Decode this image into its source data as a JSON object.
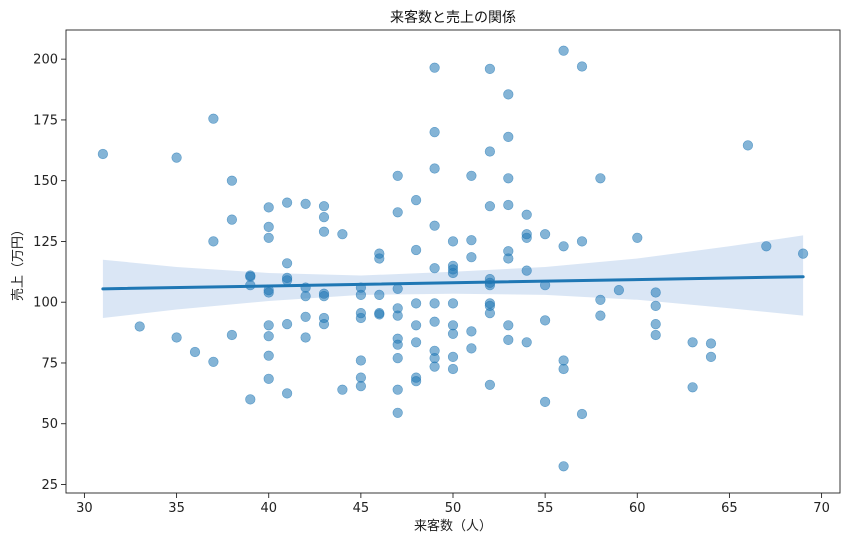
{
  "chart_data": {
    "type": "scatter",
    "title": "来客数と売上の関係",
    "xlabel": "来客数（人）",
    "ylabel": "売上（万円）",
    "xlim": [
      29,
      71
    ],
    "ylim": [
      21.5,
      212
    ],
    "xticks": [
      30,
      35,
      40,
      45,
      50,
      55,
      60,
      65,
      70
    ],
    "yticks": [
      25,
      50,
      75,
      100,
      125,
      150,
      175,
      200
    ],
    "grid": false,
    "legend": "none",
    "point_color": "#1f77b4",
    "line_color": "#1f77b4",
    "band_color": "#aec7e8",
    "points": [
      [
        31,
        161
      ],
      [
        33,
        90
      ],
      [
        35,
        159.5
      ],
      [
        35,
        85.5
      ],
      [
        36,
        79.5
      ],
      [
        37,
        175.5
      ],
      [
        37,
        125
      ],
      [
        37,
        75.5
      ],
      [
        38,
        150
      ],
      [
        38,
        134
      ],
      [
        38,
        86.5
      ],
      [
        39,
        111
      ],
      [
        39,
        110.5
      ],
      [
        39,
        107
      ],
      [
        39,
        60
      ],
      [
        40,
        139
      ],
      [
        40,
        131
      ],
      [
        40,
        126.5
      ],
      [
        40,
        105
      ],
      [
        40,
        104
      ],
      [
        40,
        90.5
      ],
      [
        40,
        86
      ],
      [
        40,
        78
      ],
      [
        40,
        68.5
      ],
      [
        41,
        141
      ],
      [
        41,
        116
      ],
      [
        41,
        110
      ],
      [
        41,
        109
      ],
      [
        41,
        91
      ],
      [
        41,
        62.5
      ],
      [
        42,
        140.5
      ],
      [
        42,
        106
      ],
      [
        42,
        102.5
      ],
      [
        42,
        94
      ],
      [
        42,
        85.5
      ],
      [
        43,
        139.5
      ],
      [
        43,
        135
      ],
      [
        43,
        129
      ],
      [
        43,
        103.5
      ],
      [
        43,
        102.5
      ],
      [
        43,
        93.5
      ],
      [
        43,
        91
      ],
      [
        44,
        128
      ],
      [
        44,
        64
      ],
      [
        45,
        106
      ],
      [
        45,
        103
      ],
      [
        45,
        95.5
      ],
      [
        45,
        93.5
      ],
      [
        45,
        76
      ],
      [
        45,
        69
      ],
      [
        45,
        65.5
      ],
      [
        46,
        120
      ],
      [
        46,
        118
      ],
      [
        46,
        103
      ],
      [
        46,
        95.5
      ],
      [
        46,
        95
      ],
      [
        47,
        152
      ],
      [
        47,
        137
      ],
      [
        47,
        105.5
      ],
      [
        47,
        97.5
      ],
      [
        47,
        94.5
      ],
      [
        47,
        85
      ],
      [
        47,
        82.5
      ],
      [
        47,
        77
      ],
      [
        47,
        64
      ],
      [
        47,
        54.5
      ],
      [
        48,
        142
      ],
      [
        48,
        121.5
      ],
      [
        48,
        99.5
      ],
      [
        48,
        90.5
      ],
      [
        48,
        83.5
      ],
      [
        48,
        69
      ],
      [
        48,
        67.5
      ],
      [
        49,
        196.5
      ],
      [
        49,
        170
      ],
      [
        49,
        155
      ],
      [
        49,
        131.5
      ],
      [
        49,
        114
      ],
      [
        49,
        99.5
      ],
      [
        49,
        92
      ],
      [
        49,
        80
      ],
      [
        49,
        77
      ],
      [
        49,
        73.5
      ],
      [
        50,
        125
      ],
      [
        50,
        115
      ],
      [
        50,
        113.5
      ],
      [
        50,
        112
      ],
      [
        50,
        99.5
      ],
      [
        50,
        90.5
      ],
      [
        50,
        87
      ],
      [
        50,
        77.5
      ],
      [
        50,
        72.5
      ],
      [
        51,
        152
      ],
      [
        51,
        125.5
      ],
      [
        51,
        118.5
      ],
      [
        51,
        88
      ],
      [
        51,
        81
      ],
      [
        52,
        196
      ],
      [
        52,
        162
      ],
      [
        52,
        139.5
      ],
      [
        52,
        109.5
      ],
      [
        52,
        108
      ],
      [
        52,
        107
      ],
      [
        52,
        99.5
      ],
      [
        52,
        98.5
      ],
      [
        52,
        95.5
      ],
      [
        52,
        66
      ],
      [
        53,
        185.5
      ],
      [
        53,
        168
      ],
      [
        53,
        151
      ],
      [
        53,
        140
      ],
      [
        53,
        121
      ],
      [
        53,
        118
      ],
      [
        53,
        90.5
      ],
      [
        53,
        84.5
      ],
      [
        54,
        136
      ],
      [
        54,
        128
      ],
      [
        54,
        126.5
      ],
      [
        54,
        113
      ],
      [
        54,
        83.5
      ],
      [
        55,
        128
      ],
      [
        55,
        107
      ],
      [
        55,
        92.5
      ],
      [
        55,
        59
      ],
      [
        56,
        203.5
      ],
      [
        56,
        123
      ],
      [
        56,
        76
      ],
      [
        56,
        72.5
      ],
      [
        56,
        32.5
      ],
      [
        57,
        197
      ],
      [
        57,
        125
      ],
      [
        57,
        54
      ],
      [
        58,
        151
      ],
      [
        58,
        101
      ],
      [
        58,
        94.5
      ],
      [
        59,
        105
      ],
      [
        60,
        126.5
      ],
      [
        61,
        104
      ],
      [
        61,
        98.5
      ],
      [
        61,
        91
      ],
      [
        61,
        86.5
      ],
      [
        63,
        83.5
      ],
      [
        63,
        65
      ],
      [
        64,
        83
      ],
      [
        64,
        77.5
      ],
      [
        66,
        164.5
      ],
      [
        67,
        123
      ],
      [
        69,
        120
      ]
    ],
    "regression_line": {
      "x": [
        31,
        69
      ],
      "y": [
        105.5,
        110.5
      ]
    },
    "confidence_band": {
      "x": [
        31,
        35,
        40,
        45,
        50,
        55,
        60,
        65,
        69
      ],
      "upper": [
        117.5,
        114.5,
        112,
        111,
        112.5,
        114.5,
        118,
        123,
        127.5
      ],
      "lower": [
        93.5,
        97,
        100.5,
        103,
        103.5,
        103,
        101,
        97.5,
        94.5
      ]
    }
  }
}
